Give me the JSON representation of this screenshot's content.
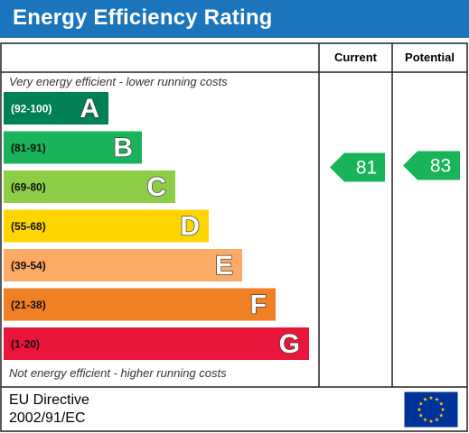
{
  "title": "Energy Efficiency Rating",
  "columns": {
    "current": "Current",
    "potential": "Potential"
  },
  "top_caption": "Very energy efficient - lower running costs",
  "bottom_caption": "Not energy efficient - higher running costs",
  "footer": {
    "line1": "EU Directive",
    "line2": "2002/91/EC",
    "flag_icon": "eu-flag-icon"
  },
  "chart_data": {
    "type": "bar",
    "categories": [
      "(92-100)",
      "(81-91)",
      "(69-80)",
      "(55-68)",
      "(39-54)",
      "(21-38)",
      "(1-20)"
    ],
    "bands": [
      {
        "range": "(92-100)",
        "letter": "A",
        "color": "#008054"
      },
      {
        "range": "(81-91)",
        "letter": "B",
        "color": "#19b459"
      },
      {
        "range": "(69-80)",
        "letter": "C",
        "color": "#8dce46"
      },
      {
        "range": "(55-68)",
        "letter": "D",
        "color": "#ffd500"
      },
      {
        "range": "(39-54)",
        "letter": "E",
        "color": "#fcaa65"
      },
      {
        "range": "(21-38)",
        "letter": "F",
        "color": "#ef8023"
      },
      {
        "range": "(1-20)",
        "letter": "G",
        "color": "#e9153b"
      }
    ],
    "current": {
      "value": 81,
      "color": "#19b459"
    },
    "potential": {
      "value": 83,
      "color": "#19b459"
    }
  }
}
